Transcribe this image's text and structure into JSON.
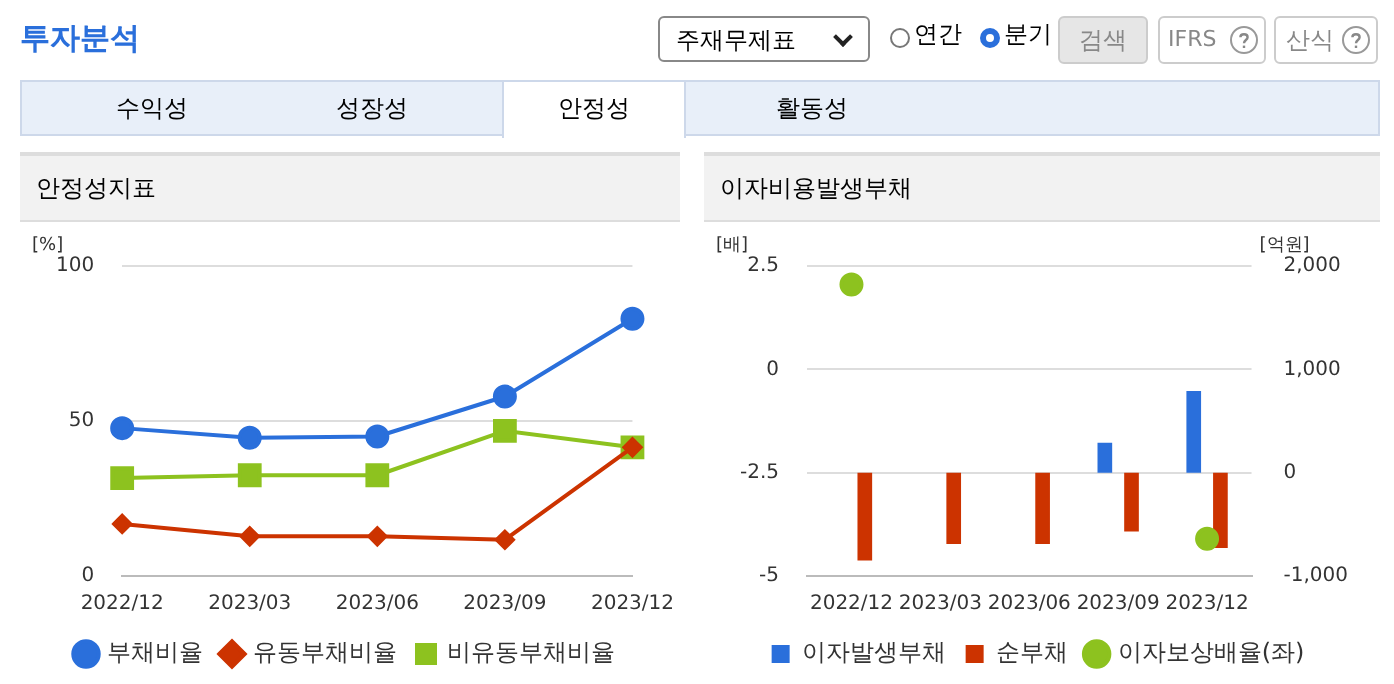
{
  "chart_data": [
    {
      "type": "other",
      "title": "투자분석",
      "annotations": [
        "주재무제표",
        "연간",
        "분기",
        "검색",
        "IFRS",
        "산식",
        "수익성",
        "성장성",
        "안정성",
        "활동성"
      ]
    },
    {
      "type": "line",
      "title": "안정성지표",
      "ylabel": "[%]",
      "categories": [
        "2022/12",
        "2023/03",
        "2023/06",
        "2023/09",
        "2023/12"
      ],
      "series": [
        {
          "name": "부채비율",
          "color": "#2a6fdb",
          "marker": "circle",
          "values": [
            47.7,
            44.6,
            45,
            57.9,
            83
          ]
        },
        {
          "name": "유동부채비율",
          "color": "#cc3300",
          "marker": "diamond",
          "values": [
            16.8,
            12.8,
            12.8,
            11.7,
            41.5
          ]
        },
        {
          "name": "비유동부채비율",
          "color": "#8dc21f",
          "marker": "square",
          "values": [
            31.6,
            32.5,
            32.5,
            46.8,
            41.5
          ]
        }
      ],
      "ylim": [
        0,
        100
      ],
      "yticks": [
        0,
        50,
        100
      ],
      "grid": "y",
      "legend": "bottom"
    },
    {
      "type": "bar",
      "title": "이자비용발생부채",
      "ylabel": "[배]",
      "y2label": "[억원]",
      "categories": [
        "2022/12",
        "2023/03",
        "2023/06",
        "2023/09",
        "2023/12"
      ],
      "series": [
        {
          "name": "이자발생부채",
          "color": "#2a6fdb",
          "axis": "y2",
          "values": [
            null,
            null,
            null,
            290,
            790
          ]
        },
        {
          "name": "순부채",
          "color": "#cc3300",
          "axis": "y2",
          "values": [
            -850,
            -690,
            -690,
            -570,
            -730
          ]
        },
        {
          "name": "이자보상배율(좌)",
          "type": "scatter",
          "color": "#8dc21f",
          "marker": "circle",
          "x": [
            "2022/12",
            "2023/12"
          ],
          "values": [
            2.05,
            -4.1
          ]
        }
      ],
      "ylim": [
        -5,
        2.5
      ],
      "yticks": [
        -5,
        -2.5,
        0,
        2.5
      ],
      "y2lim": [
        -1000,
        2000
      ],
      "y2ticks": [
        {
          "value": -1000,
          "label": "-1,000"
        },
        {
          "value": 0,
          "label": "0"
        },
        {
          "value": 1000,
          "label": "1,000"
        },
        {
          "value": 2000,
          "label": "2,000"
        }
      ],
      "grid": "y",
      "legend": "bottom"
    }
  ]
}
